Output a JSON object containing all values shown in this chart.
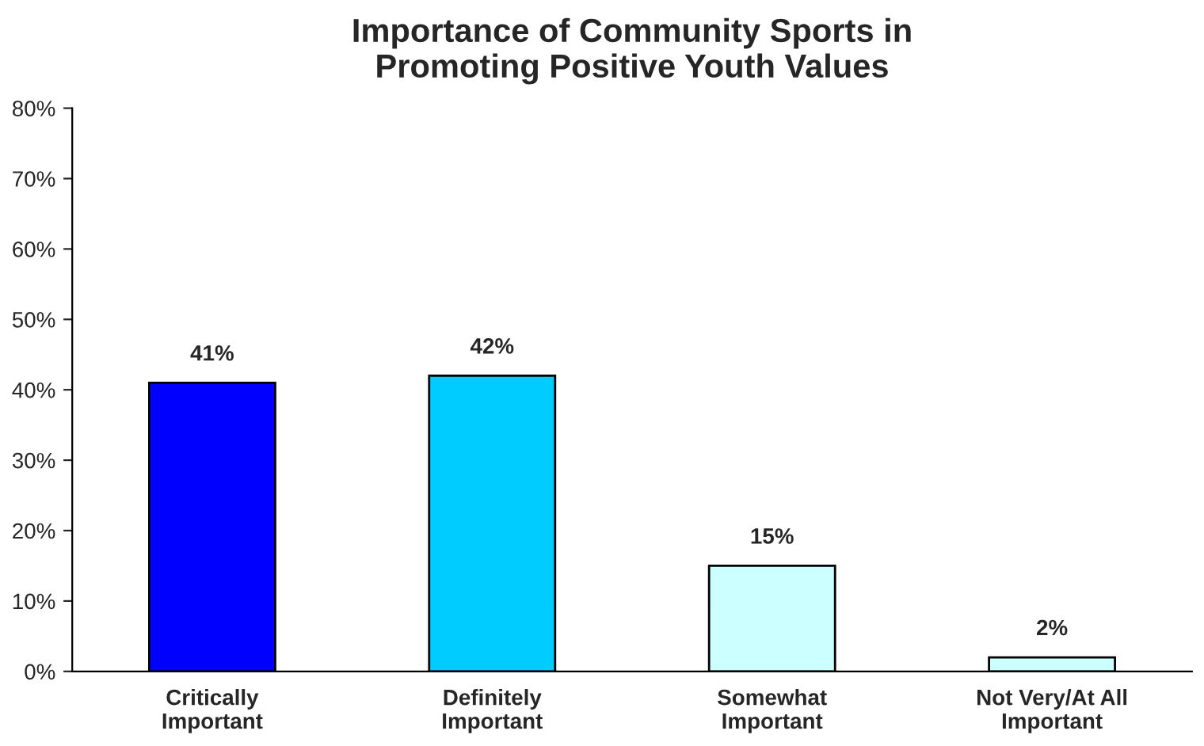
{
  "chart_data": {
    "type": "bar",
    "title": "Importance of Community Sports in\nPromoting Positive Youth Values",
    "categories": [
      "Critically\nImportant",
      "Definitely\nImportant",
      "Somewhat\nImportant",
      "Not Very/At All\nImportant"
    ],
    "values": [
      41,
      42,
      15,
      2
    ],
    "colors": [
      "#0000ff",
      "#00ccff",
      "#ccffff",
      "#ccffff"
    ],
    "value_labels": [
      "41%",
      "42%",
      "15%",
      "2%"
    ],
    "ylim": [
      0,
      80
    ],
    "yticks": [
      {
        "value": 0,
        "label": "0%"
      },
      {
        "value": 10,
        "label": "10%"
      },
      {
        "value": 20,
        "label": "20%"
      },
      {
        "value": 30,
        "label": "30%"
      },
      {
        "value": 40,
        "label": "40%"
      },
      {
        "value": 50,
        "label": "50%"
      },
      {
        "value": 60,
        "label": "60%"
      },
      {
        "value": 70,
        "label": "70%"
      },
      {
        "value": 80,
        "label": "80%"
      }
    ],
    "grid": false,
    "legend": false
  }
}
